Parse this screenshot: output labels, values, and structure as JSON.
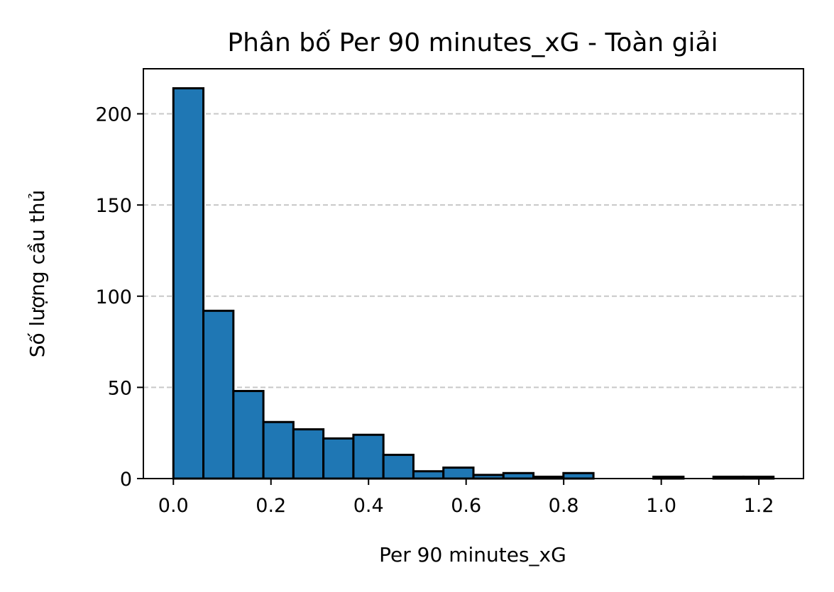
{
  "chart_data": {
    "type": "bar",
    "title": "Phân bố Per 90 minutes_xG - Toàn giải",
    "xlabel": "Per 90 minutes_xG",
    "ylabel": "Số lượng cầu thủ",
    "bin_edges": [
      0.0,
      0.0615,
      0.123,
      0.1845,
      0.246,
      0.3075,
      0.369,
      0.4305,
      0.492,
      0.5535,
      0.615,
      0.6765,
      0.738,
      0.7995,
      0.861,
      0.9225,
      0.984,
      1.0455,
      1.107,
      1.1685,
      1.23
    ],
    "values": [
      214,
      92,
      48,
      31,
      27,
      22,
      24,
      13,
      4,
      6,
      2,
      3,
      1,
      3,
      0,
      0,
      1,
      0,
      1,
      1
    ],
    "xlim": [
      -0.0615,
      1.2915
    ],
    "ylim": [
      0,
      224.7
    ],
    "xticks": [
      0.0,
      0.2,
      0.4,
      0.6,
      0.8,
      1.0,
      1.2
    ],
    "xtick_labels": [
      "0.0",
      "0.2",
      "0.4",
      "0.6",
      "0.8",
      "1.0",
      "1.2"
    ],
    "yticks": [
      0,
      50,
      100,
      150,
      200
    ],
    "ytick_labels": [
      "0",
      "50",
      "100",
      "150",
      "200"
    ],
    "grid": "y-dashed",
    "bar_color": "#1f77b4",
    "edge_color": "#000000",
    "grid_color": "#c8c8c8"
  }
}
